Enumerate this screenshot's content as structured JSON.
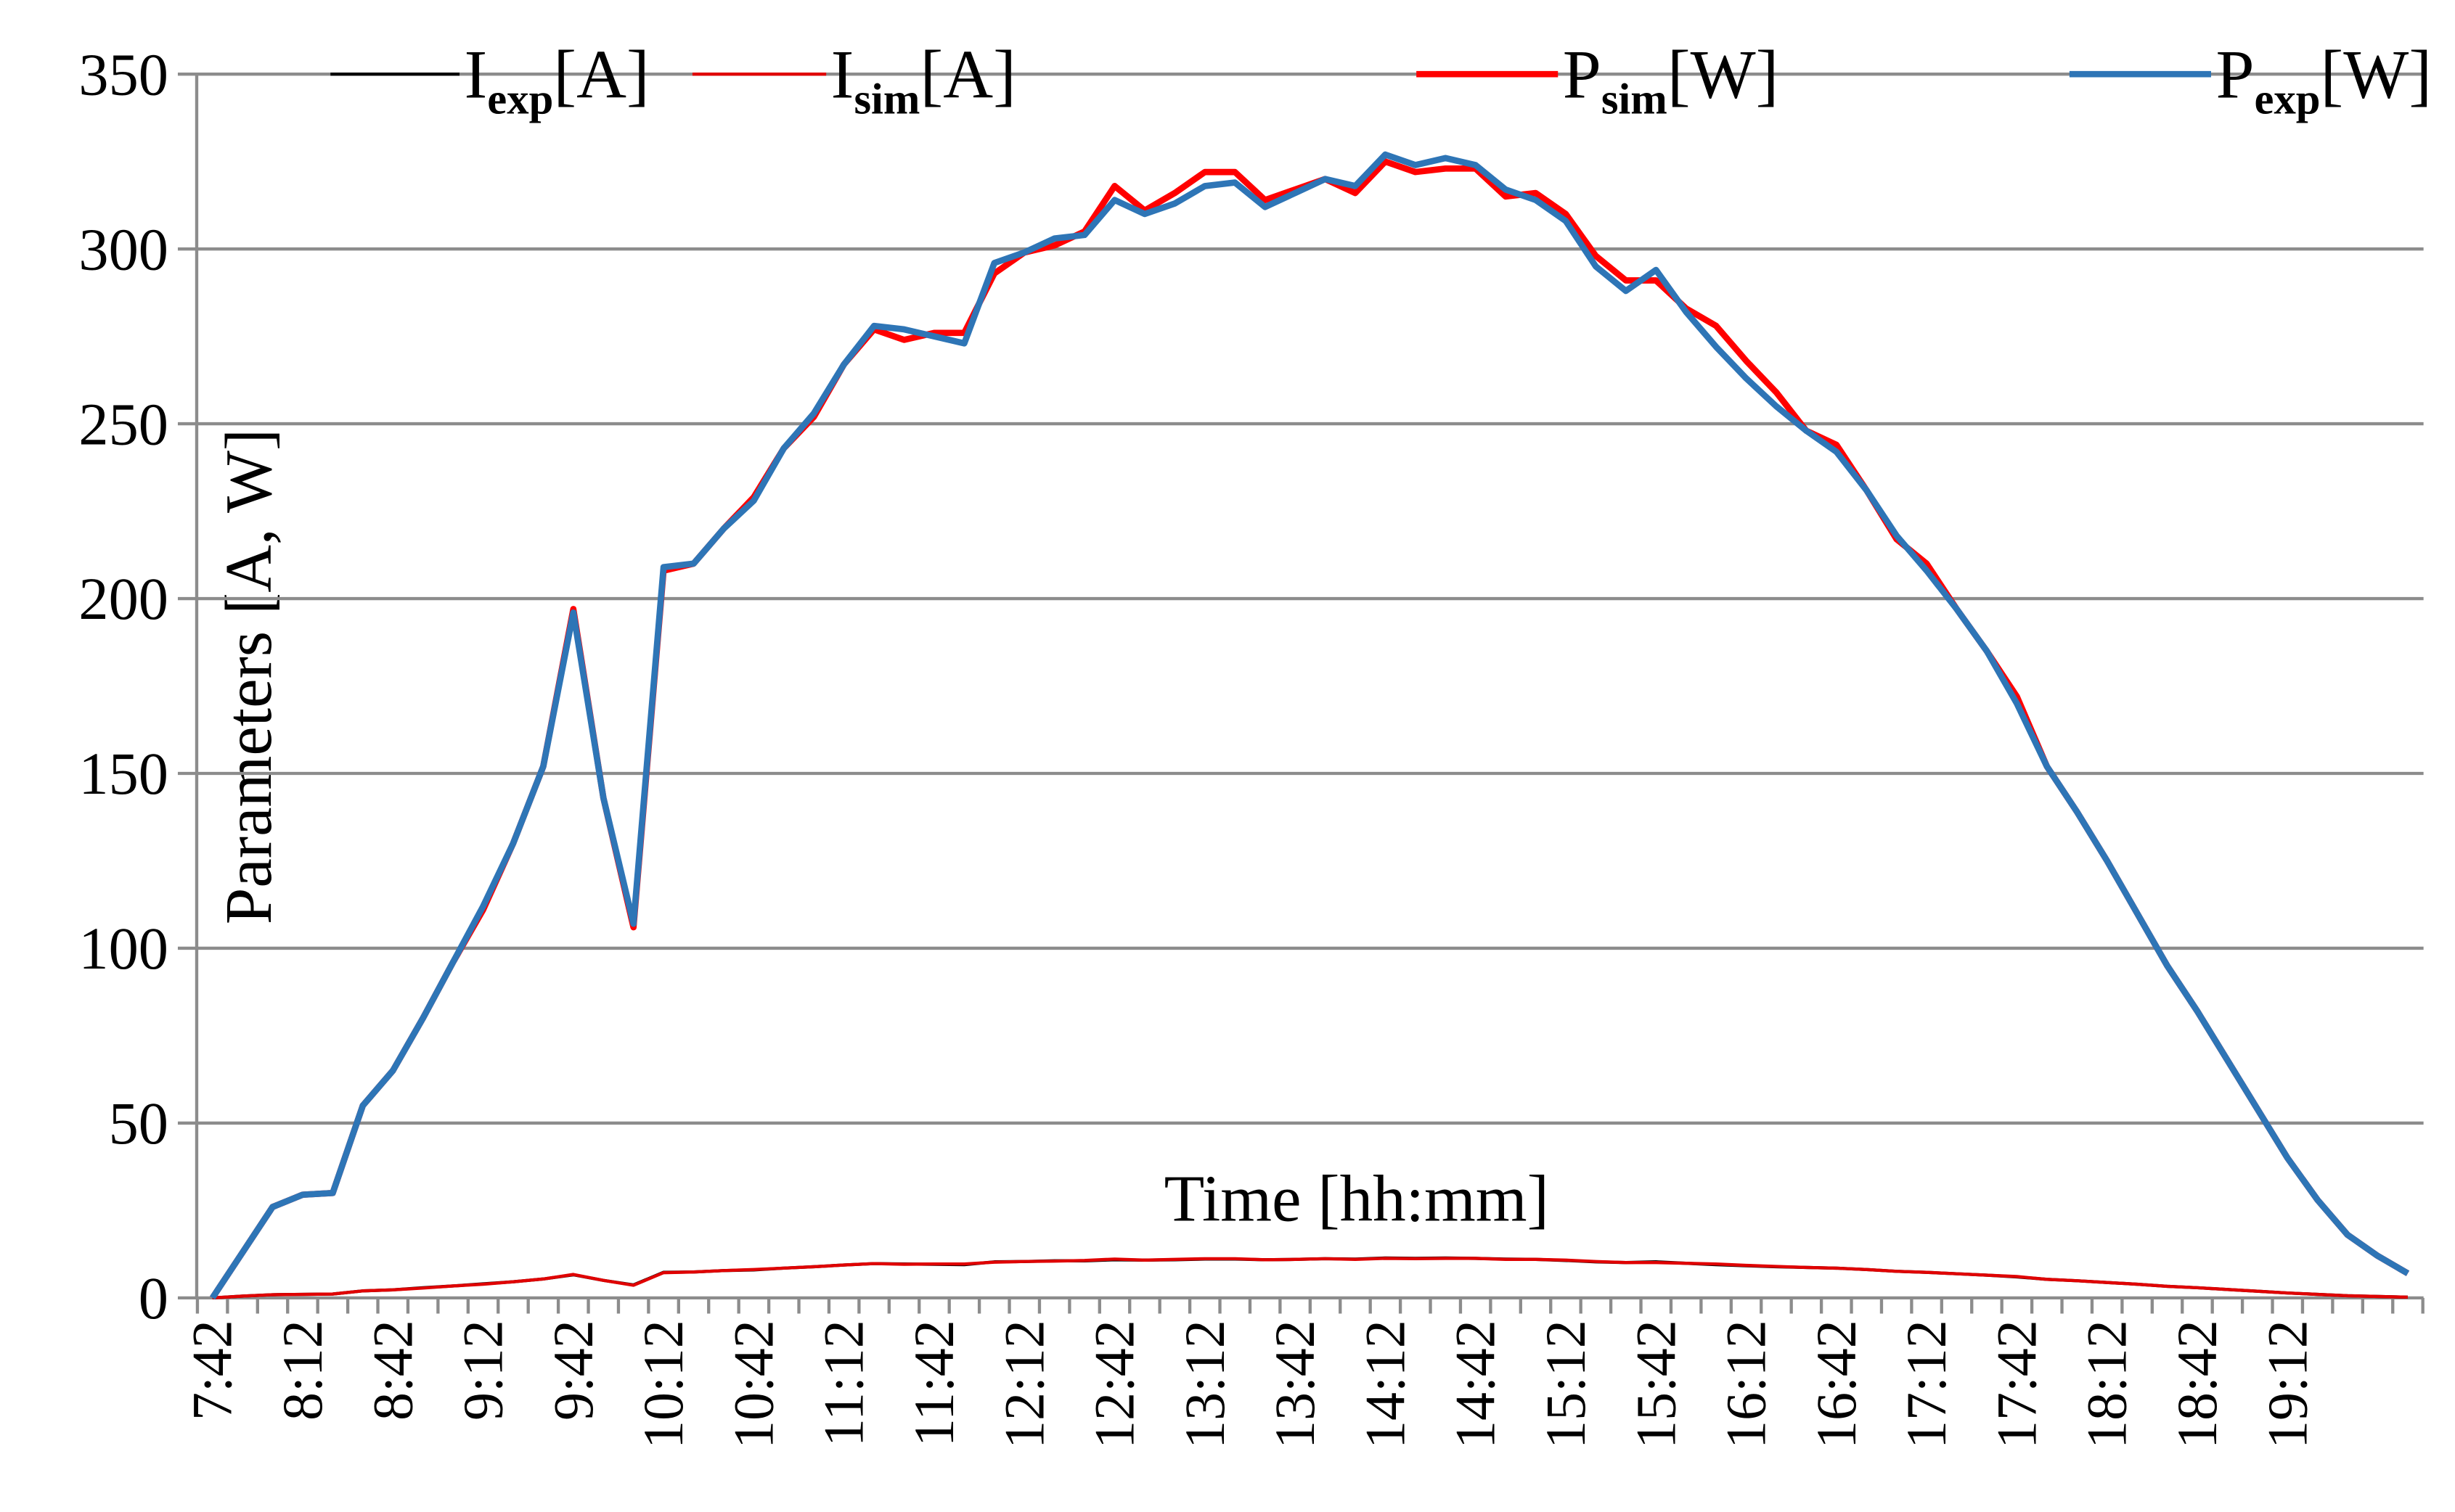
{
  "chart_data": {
    "type": "line",
    "y_label": "Parameters [A, W]",
    "x_label": "Time [hh:mm]",
    "categories": [
      "7:42",
      null,
      null,
      "8:12",
      null,
      null,
      "8:42",
      null,
      null,
      "9:12",
      null,
      null,
      "9:42",
      null,
      null,
      "10:12",
      null,
      null,
      "10:42",
      null,
      null,
      "11:12",
      null,
      null,
      "11:42",
      null,
      null,
      "12:12",
      null,
      null,
      "12:42",
      null,
      null,
      "13:12",
      null,
      null,
      "13:42",
      null,
      null,
      "14:12",
      null,
      null,
      "14:42",
      null,
      null,
      "15:12",
      null,
      null,
      "15:42",
      null,
      null,
      "16:12",
      null,
      null,
      "16:42",
      null,
      null,
      "17:12",
      null,
      null,
      "17:42",
      null,
      null,
      "18:12",
      null,
      null,
      "18:42",
      null,
      null,
      "19:12",
      null,
      null,
      null,
      null
    ],
    "series": [
      {
        "name": "Iexp[A]",
        "color": "#000000",
        "line_width": 2,
        "values": [
          0,
          0.5,
          0.9,
          1,
          1.1,
          2,
          2.3,
          2.9,
          3.4,
          4,
          4.6,
          5.4,
          6.6,
          5,
          3.7,
          7.3,
          7.4,
          7.8,
          8,
          8.5,
          8.9,
          9.4,
          9.8,
          9.7,
          9.6,
          9.5,
          10.3,
          10.4,
          10.6,
          10.6,
          10.9,
          10.8,
          10.9,
          11.1,
          11.1,
          10.9,
          11,
          11.2,
          11.1,
          11.4,
          11.3,
          11.4,
          11.3,
          11.1,
          11,
          10.7,
          10.3,
          10.1,
          10.3,
          9.9,
          9.5,
          9.2,
          8.9,
          8.7,
          8.5,
          8.1,
          7.6,
          7.3,
          6.9,
          6.5,
          6,
          5.3,
          4.9,
          4.4,
          3.9,
          3.3,
          2.9,
          2.4,
          1.9,
          1.4,
          1,
          0.6,
          0.4,
          0.2
        ]
      },
      {
        "name": "Isim[A]",
        "color": "#e00000",
        "line_width": 2,
        "values": [
          0,
          0.5,
          0.9,
          1,
          1.1,
          2,
          2.3,
          2.8,
          3.4,
          3.9,
          4.6,
          5.4,
          6.7,
          5,
          3.6,
          7.2,
          7.4,
          7.8,
          8.1,
          8.5,
          8.9,
          9.4,
          9.8,
          9.6,
          9.7,
          9.7,
          10.2,
          10.4,
          10.5,
          10.7,
          11.1,
          10.8,
          11,
          11.2,
          11.2,
          10.9,
          11,
          11.2,
          11,
          11.3,
          11.2,
          11.3,
          11.3,
          11,
          11,
          10.8,
          10.4,
          10.1,
          10.1,
          9.9,
          9.7,
          9.3,
          9,
          8.7,
          8.5,
          8.1,
          7.6,
          7.3,
          6.9,
          6.5,
          6.1,
          5.3,
          4.9,
          4.4,
          3.9,
          3.3,
          2.9,
          2.4,
          1.9,
          1.4,
          1,
          0.6,
          0.4,
          0.2
        ]
      },
      {
        "name": "Psim[W]",
        "color": "#ff0000",
        "line_width": 4,
        "values": [
          0,
          13,
          26,
          29.5,
          30,
          55,
          65,
          80,
          96,
          111,
          130,
          152,
          197,
          143,
          106,
          208,
          210,
          220,
          229,
          243,
          252,
          267,
          277,
          274,
          276,
          276,
          293,
          299,
          301,
          305,
          318,
          311,
          316,
          322,
          322,
          314,
          317,
          320,
          316,
          325,
          322,
          323,
          323,
          315,
          316,
          310,
          298,
          291,
          291,
          283,
          278,
          268,
          259,
          248,
          244,
          231,
          217,
          210,
          197,
          185,
          172,
          152,
          139,
          125,
          110,
          95,
          82,
          68,
          54,
          40,
          28,
          18,
          12,
          7
        ]
      },
      {
        "name": "Pexp[W]",
        "color": "#2e75b6",
        "line_width": 4,
        "values": [
          0,
          13,
          26,
          29.5,
          30,
          55,
          65,
          80,
          96,
          112,
          130,
          152,
          196,
          143,
          107,
          209,
          210,
          220,
          228,
          243,
          253,
          267,
          278,
          277,
          275,
          273,
          296,
          299,
          303,
          304,
          314,
          310,
          313,
          318,
          319,
          312,
          316,
          320,
          318,
          327,
          324,
          326,
          324,
          317,
          314,
          308,
          295,
          288,
          294,
          282,
          272,
          263,
          255,
          248,
          242,
          231,
          218,
          208,
          197,
          185,
          170,
          152,
          139,
          125,
          110,
          95,
          82,
          68,
          54,
          40,
          28,
          18,
          12,
          7
        ]
      }
    ],
    "ylim": [
      0,
      350
    ],
    "yticks": [
      0,
      50,
      100,
      150,
      200,
      250,
      300,
      350
    ],
    "grid": true
  }
}
